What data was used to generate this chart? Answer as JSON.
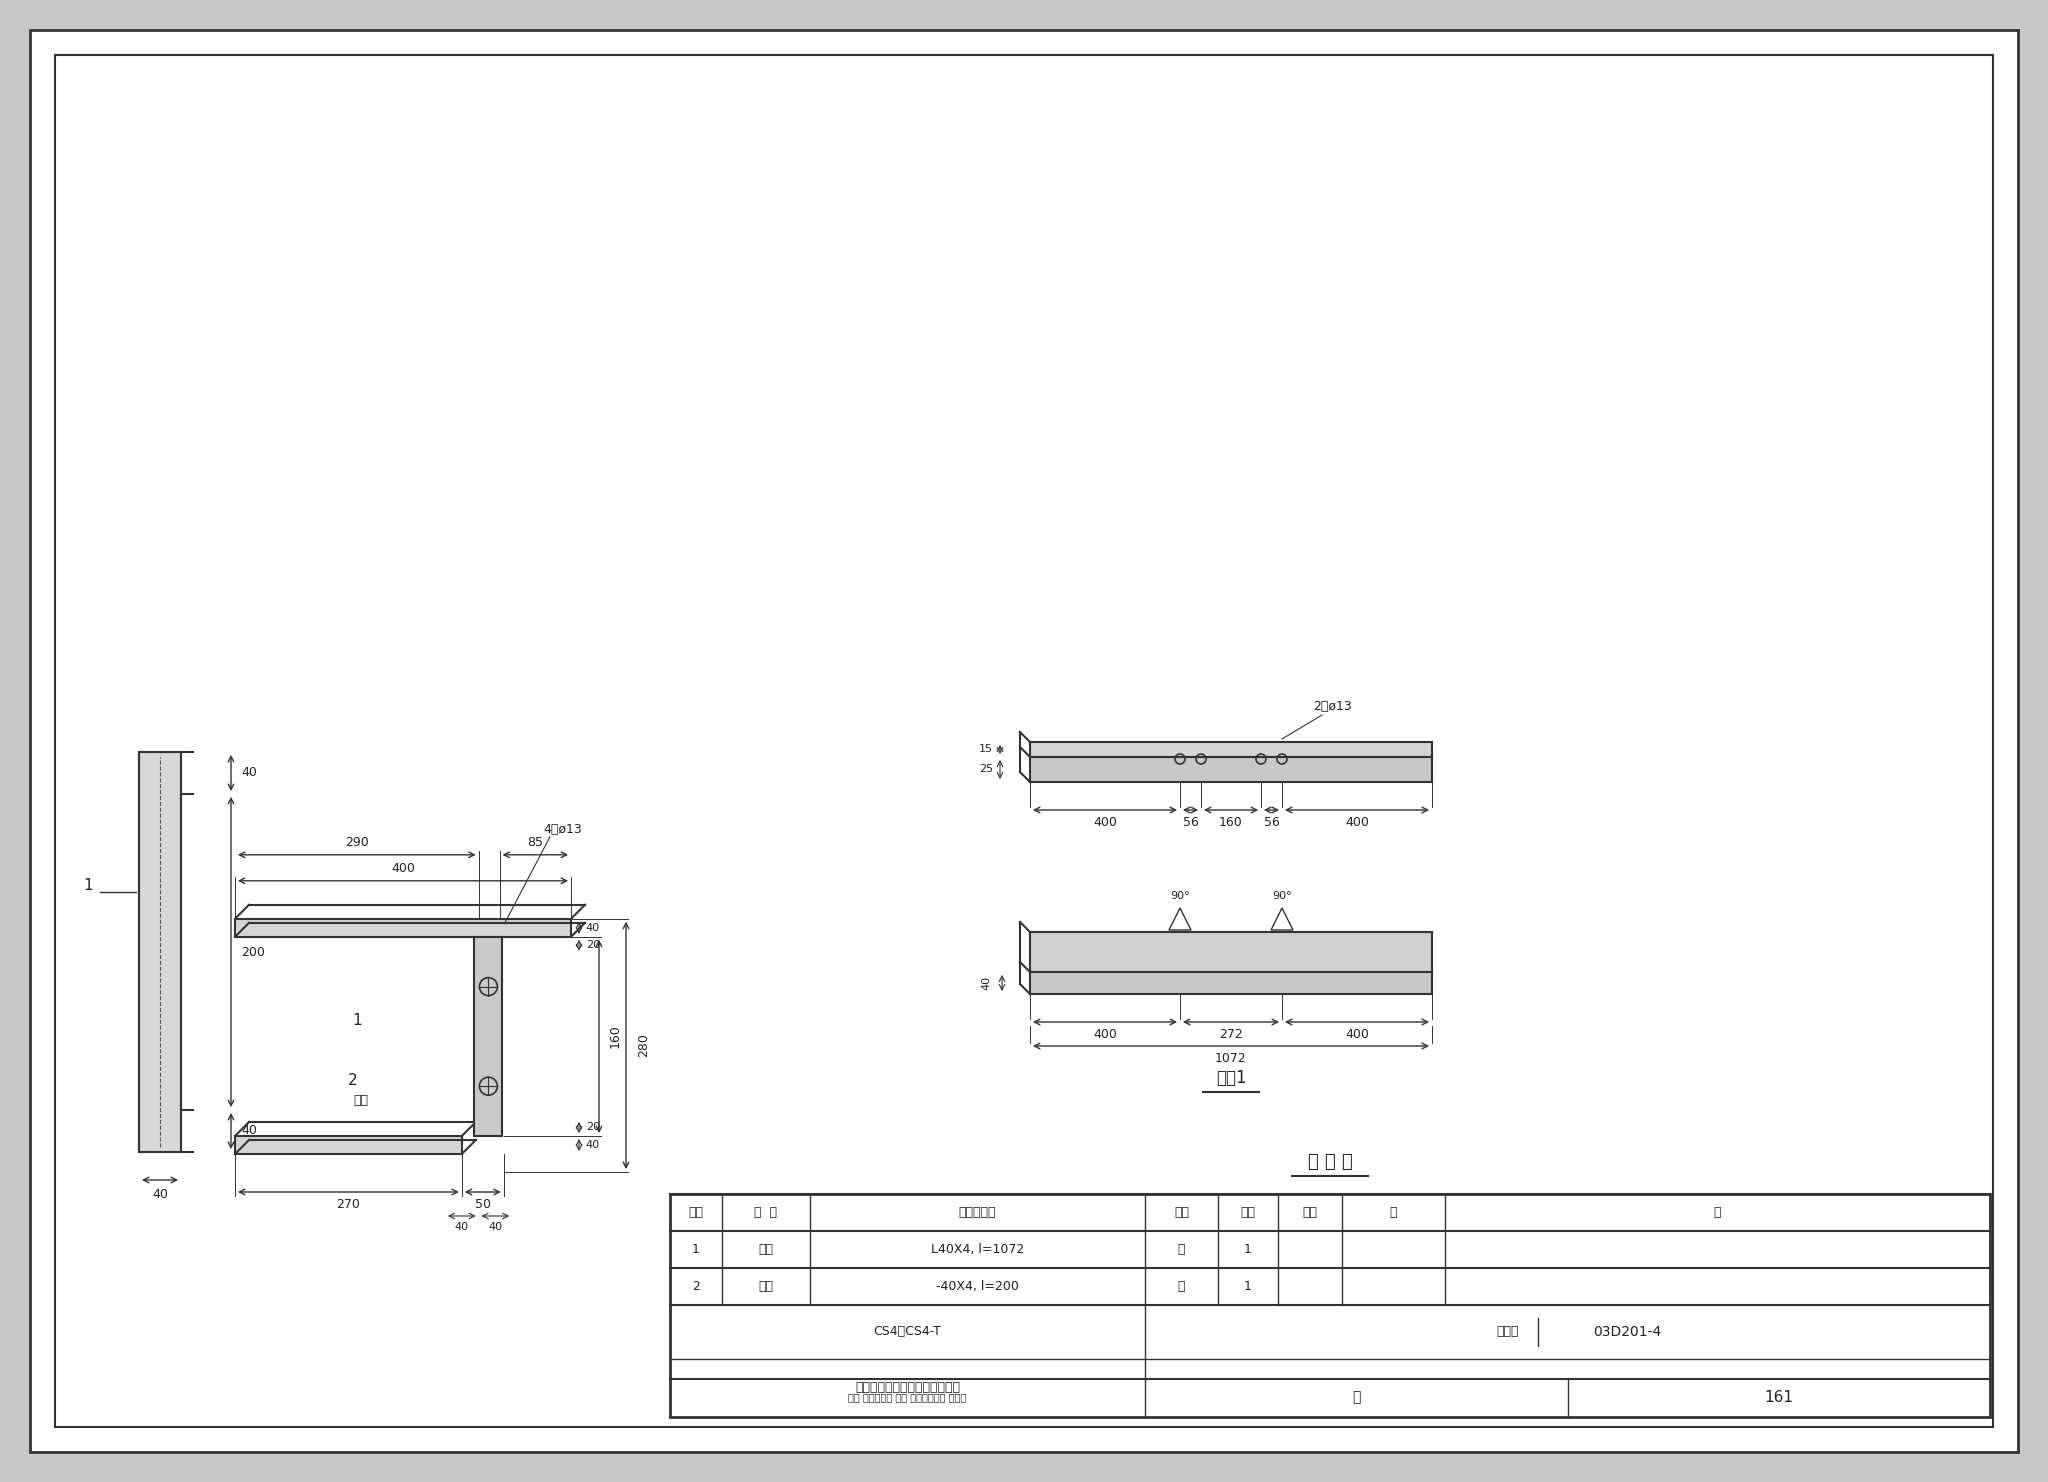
{
  "bg_color": "#f0f0f0",
  "border_color": "#222222",
  "line_color": "#333333",
  "dim_color": "#333333",
  "title": "",
  "page_bg": "#e8e8e8",
  "drawing_bg": "#f5f5f5",
  "table_title": "明 细 表",
  "table_headers": [
    "序号",
    "名  称",
    "型号及规格",
    "单位",
    "数量",
    "页次",
    "备",
    "注"
  ],
  "table_rows": [
    [
      "1",
      "角钢",
      "L40X4, l=1072",
      "根",
      "1",
      "",
      "",
      ""
    ],
    [
      "2",
      "扁钢",
      "-40X4, l=200",
      "根",
      "1",
      "",
      "",
      ""
    ]
  ],
  "bottom_left1": "CS4、CS4-T",
  "bottom_left2": "手力操动机构在墙上的安装支架",
  "bottom_right1": "图集号",
  "bottom_right2": "03D201-4",
  "bottom_page_label": "页",
  "bottom_page_num": "161",
  "bottom_reviewers": "审核 专业负责人 校对 张可东、设计 程务鲁"
}
